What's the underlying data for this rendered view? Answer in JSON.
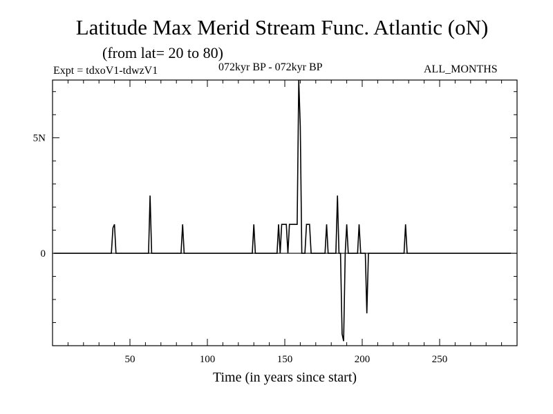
{
  "header": {
    "title": "Latitude Max Merid Stream Func. Atlantic (oN)",
    "subtitle": "(from lat= 20 to 80)",
    "experiment": "Expt = tdxoV1-tdwzV1",
    "period": "072kyr BP - 072kyr BP",
    "months": "ALL_MONTHS"
  },
  "colors": {
    "line": "#000000",
    "axis": "#000000",
    "background": "#ffffff"
  },
  "chart_data": {
    "type": "line",
    "title": "Latitude Max Merid Stream Func. Atlantic (oN)",
    "subtitle": "(from lat= 20 to 80)",
    "xlabel": "Time (in years since start)",
    "ylabel": "",
    "xlim": [
      0,
      300
    ],
    "ylim": [
      -4,
      7.5
    ],
    "x_ticks": [
      50,
      100,
      150,
      200,
      250
    ],
    "x_tick_labels": [
      "50",
      "100",
      "150",
      "200",
      "250"
    ],
    "y_ticks": [
      0,
      5
    ],
    "y_tick_labels": [
      "0",
      "5N"
    ],
    "grid": false,
    "series": [
      {
        "x": [
          1,
          38,
          39,
          40,
          41,
          48,
          62,
          63,
          64,
          65,
          72,
          83,
          84,
          85,
          86,
          90,
          98,
          129,
          130,
          131,
          132,
          135,
          145,
          146,
          147,
          148,
          149,
          150,
          151,
          152,
          153,
          154,
          155,
          156,
          157,
          158,
          159,
          160,
          161,
          162,
          163,
          164,
          165,
          166,
          167,
          168,
          169,
          176,
          177,
          178,
          179,
          182,
          183,
          184,
          185,
          186,
          187,
          188,
          189,
          190,
          191,
          192,
          193,
          197,
          198,
          199,
          200,
          202,
          203,
          204,
          205,
          206,
          226,
          227,
          228,
          229,
          230,
          240,
          296
        ],
        "y": [
          0,
          0,
          1.1,
          1.25,
          0,
          0,
          0,
          2.5,
          0,
          0,
          0,
          0,
          1.25,
          0,
          0,
          0,
          0,
          0,
          1.25,
          0,
          0,
          0,
          0,
          1.25,
          0,
          1.25,
          1.25,
          1.25,
          1.25,
          0,
          1.25,
          1.25,
          1.25,
          1.25,
          1.25,
          1.25,
          7.5,
          5.5,
          0,
          0,
          0,
          1.25,
          1.25,
          1.25,
          0,
          0,
          0,
          0,
          1.25,
          0,
          0,
          0,
          0,
          2.5,
          0,
          0,
          -3.5,
          -3.8,
          0,
          1.25,
          0,
          0,
          0,
          0,
          1.25,
          0,
          0,
          0,
          -2.6,
          0,
          0,
          0,
          0,
          0,
          1.25,
          0,
          0,
          0,
          0
        ]
      }
    ]
  }
}
